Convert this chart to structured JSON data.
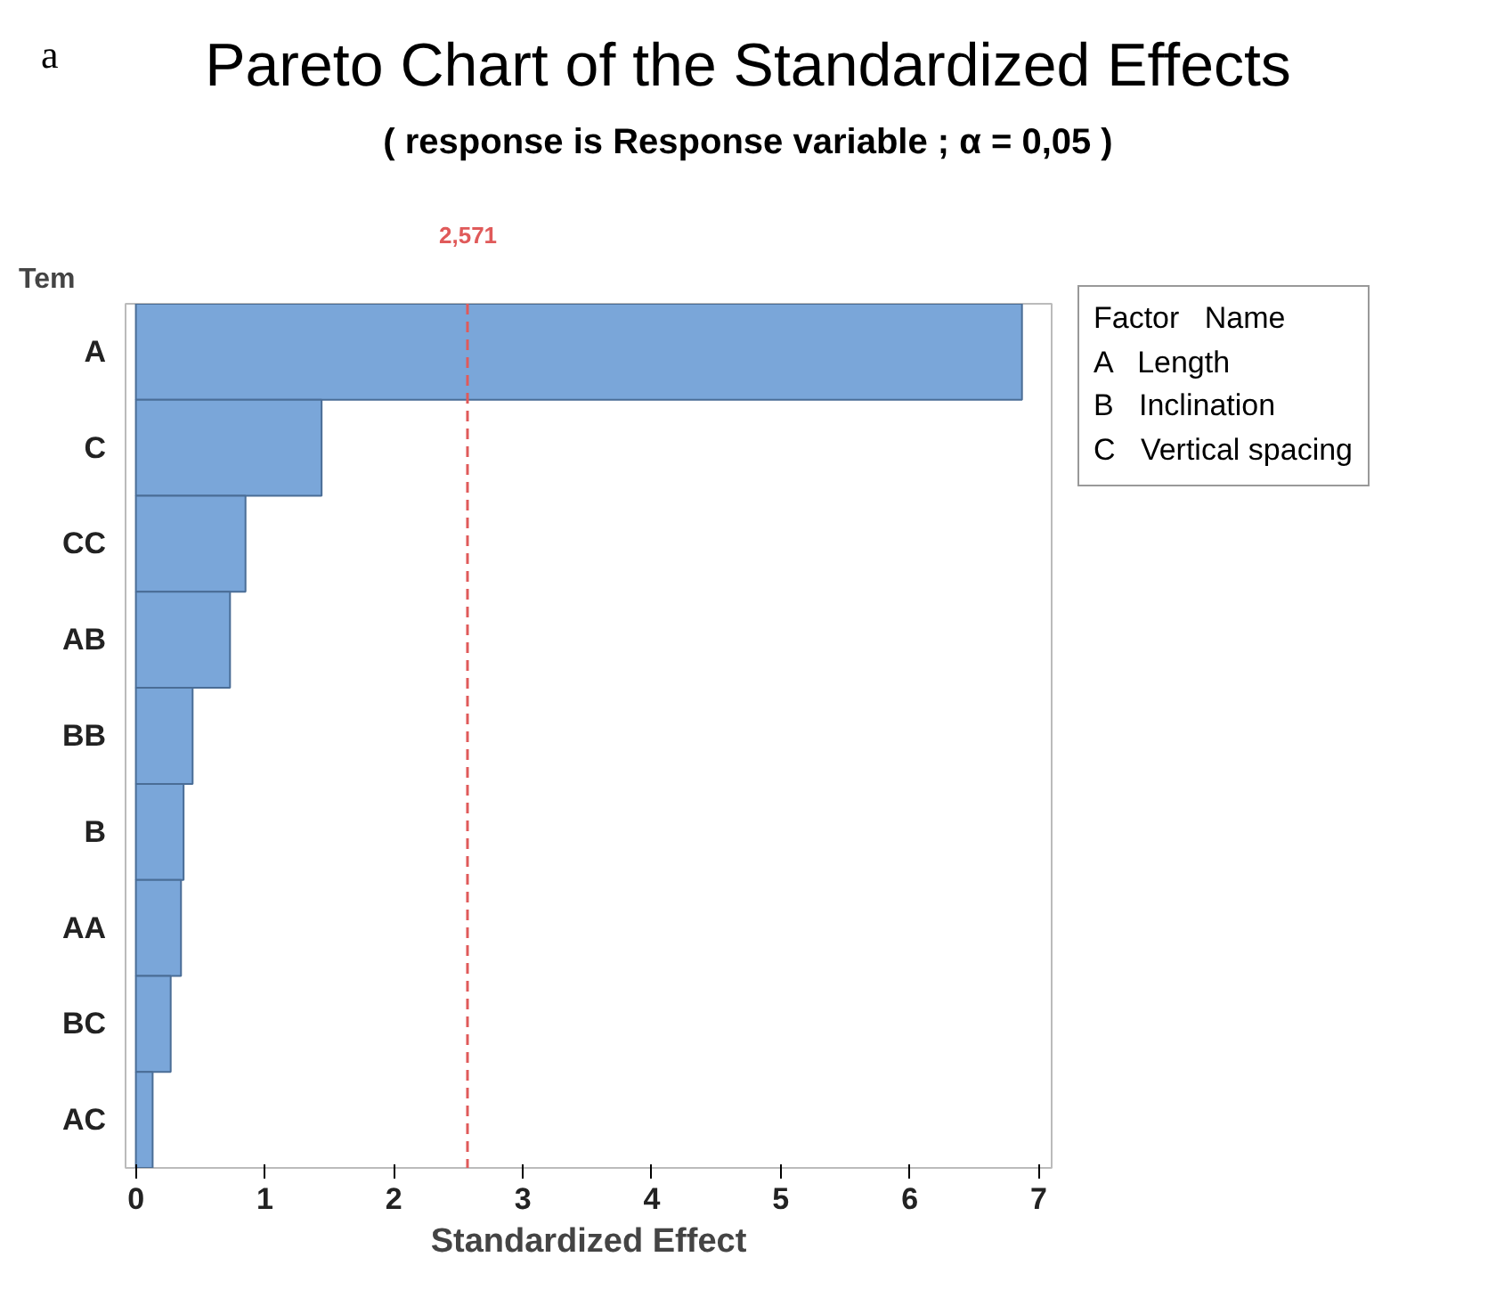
{
  "chart_data": {
    "type": "bar",
    "orientation": "horizontal",
    "title": "Pareto Chart of the Standardized Effects",
    "subtitle": "( response is Response variable ; α = 0,05 )",
    "xlabel": "Standardized Effect",
    "ylabel": "Tem",
    "categories": [
      "A",
      "C",
      "CC",
      "AB",
      "BB",
      "B",
      "AA",
      "BC",
      "AC"
    ],
    "values": [
      6.87,
      1.44,
      0.85,
      0.73,
      0.44,
      0.37,
      0.35,
      0.27,
      0.13
    ],
    "color": "#7aa6d9",
    "xlim": [
      -0.08,
      7.1
    ],
    "xticks": [
      0,
      1,
      2,
      3,
      4,
      5,
      6,
      7
    ],
    "grid": false,
    "ref_lines": [
      {
        "axis": "x",
        "value": 2.571,
        "label": "2,571",
        "color": "#e05a5a",
        "line_style": "dashed"
      }
    ],
    "annotations": [
      "a",
      "Factor   Name",
      "A   Length",
      "B   Inclination",
      "C   Vertical spacing"
    ]
  }
}
